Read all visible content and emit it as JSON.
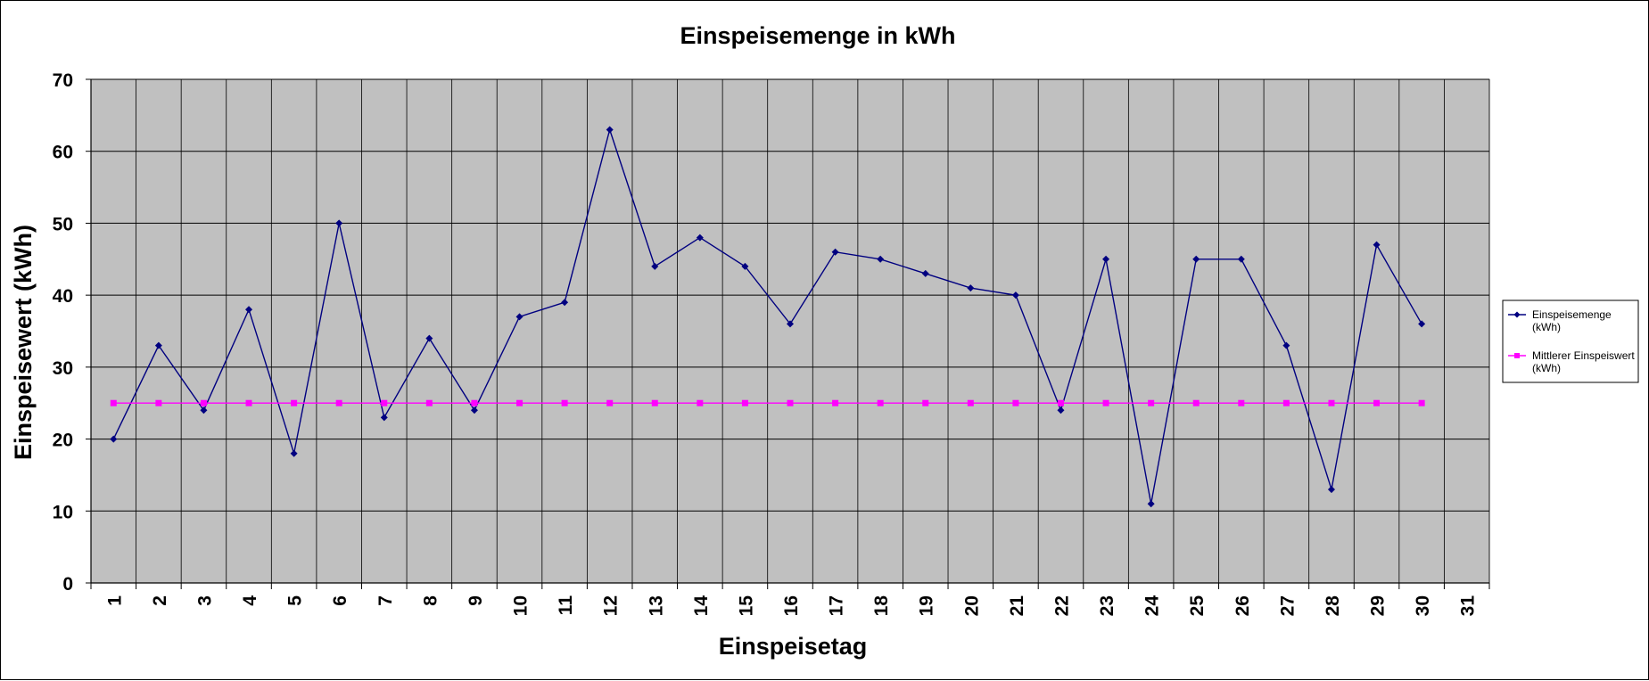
{
  "chart_data": {
    "type": "line",
    "title": "Einspeisemenge in kWh",
    "xlabel": "Einspeisetag",
    "ylabel": "Einspeisewert  (kWh)",
    "categories": [
      "1",
      "2",
      "3",
      "4",
      "5",
      "6",
      "7",
      "8",
      "9",
      "10",
      "11",
      "12",
      "13",
      "14",
      "15",
      "16",
      "17",
      "18",
      "19",
      "20",
      "21",
      "22",
      "23",
      "24",
      "25",
      "26",
      "27",
      "28",
      "29",
      "30",
      "31"
    ],
    "ylim": [
      0,
      70
    ],
    "yticks": [
      "0",
      "10",
      "20",
      "30",
      "40",
      "50",
      "60",
      "70"
    ],
    "grid": true,
    "legend_position": "right",
    "series": [
      {
        "name": "Einspeisemenge (kWh)",
        "legend_lines": [
          "Einspeisemenge",
          "(kWh)"
        ],
        "color": "#000080",
        "marker": "diamond",
        "values": [
          20,
          33,
          24,
          38,
          18,
          50,
          23,
          34,
          24,
          37,
          39,
          63,
          44,
          48,
          44,
          36,
          46,
          45,
          43,
          41,
          40,
          24,
          45,
          11,
          45,
          45,
          33,
          13,
          47,
          36,
          null
        ]
      },
      {
        "name": "Mittlerer Einspeiswert (kWh)",
        "legend_lines": [
          "Mittlerer Einspeiswert",
          "(kWh)"
        ],
        "color": "#ff00ff",
        "marker": "square",
        "values": [
          25,
          25,
          25,
          25,
          25,
          25,
          25,
          25,
          25,
          25,
          25,
          25,
          25,
          25,
          25,
          25,
          25,
          25,
          25,
          25,
          25,
          25,
          25,
          25,
          25,
          25,
          25,
          25,
          25,
          25,
          null
        ]
      }
    ],
    "plot_background": "#c0c0c0"
  }
}
